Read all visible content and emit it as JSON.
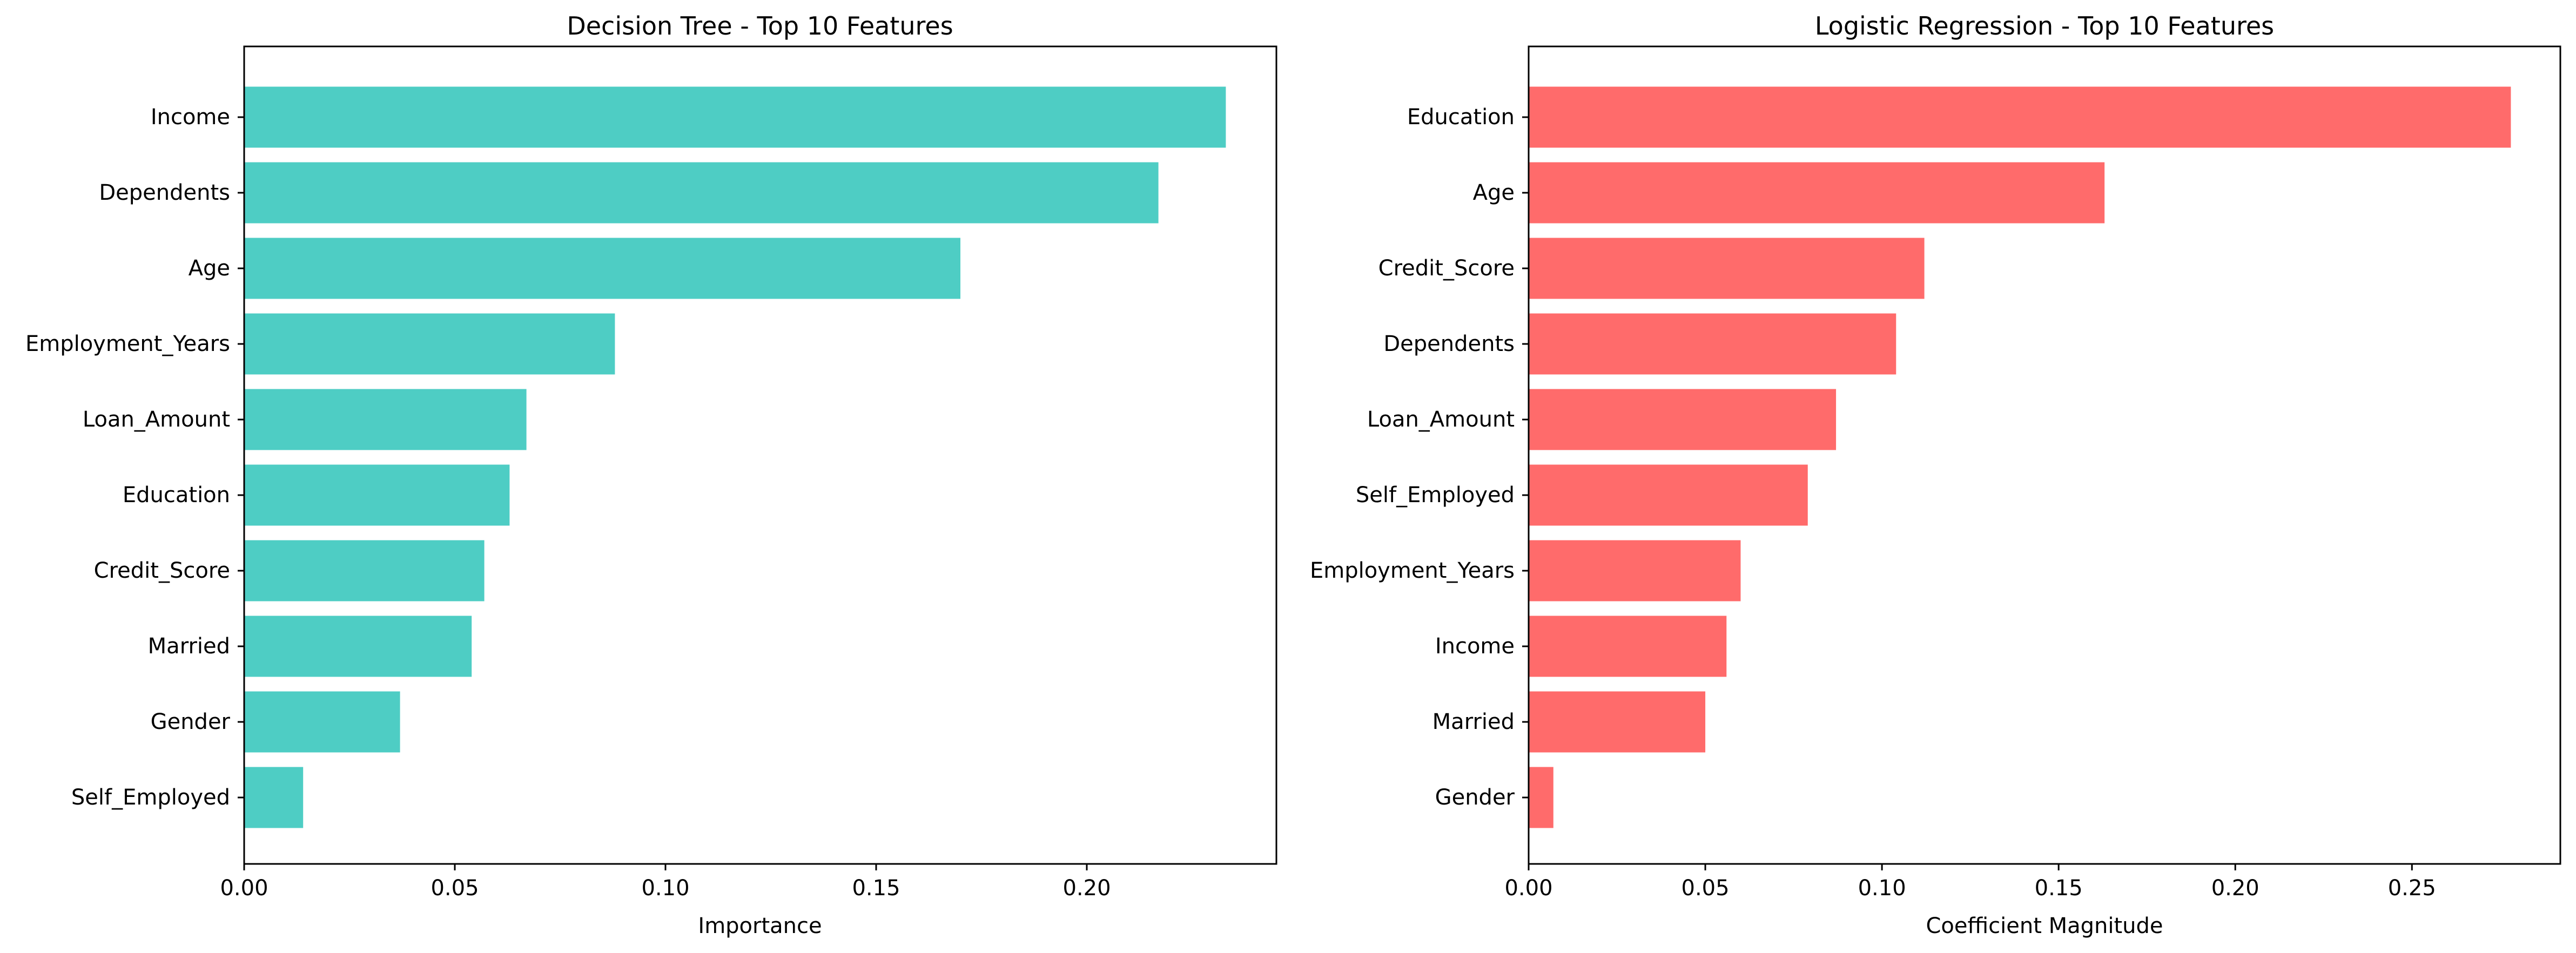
{
  "chart_data": [
    {
      "type": "bar",
      "orientation": "horizontal",
      "title": "Decision Tree - Top 10 Features",
      "xlabel": "Importance",
      "ylabel": "",
      "color": "#4ECDC4",
      "xlim": [
        0,
        0.245
      ],
      "xticks": [
        0.0,
        0.05,
        0.1,
        0.15,
        0.2
      ],
      "xtick_labels": [
        "0.00",
        "0.05",
        "0.10",
        "0.15",
        "0.20"
      ],
      "grid": false,
      "categories": [
        "Income",
        "Dependents",
        "Age",
        "Employment_Years",
        "Loan_Amount",
        "Education",
        "Credit_Score",
        "Married",
        "Gender",
        "Self_Employed"
      ],
      "values": [
        0.233,
        0.217,
        0.17,
        0.088,
        0.067,
        0.063,
        0.057,
        0.054,
        0.037,
        0.014
      ]
    },
    {
      "type": "bar",
      "orientation": "horizontal",
      "title": "Logistic Regression - Top 10 Features",
      "xlabel": "Coefficient Magnitude",
      "ylabel": "",
      "color": "#FF6B6B",
      "xlim": [
        0,
        0.292
      ],
      "xticks": [
        0.0,
        0.05,
        0.1,
        0.15,
        0.2,
        0.25
      ],
      "xtick_labels": [
        "0.00",
        "0.05",
        "0.10",
        "0.15",
        "0.20",
        "0.25"
      ],
      "grid": false,
      "categories": [
        "Education",
        "Age",
        "Credit_Score",
        "Dependents",
        "Loan_Amount",
        "Self_Employed",
        "Employment_Years",
        "Income",
        "Married",
        "Gender"
      ],
      "values": [
        0.278,
        0.163,
        0.112,
        0.104,
        0.087,
        0.079,
        0.06,
        0.056,
        0.05,
        0.007
      ]
    }
  ]
}
